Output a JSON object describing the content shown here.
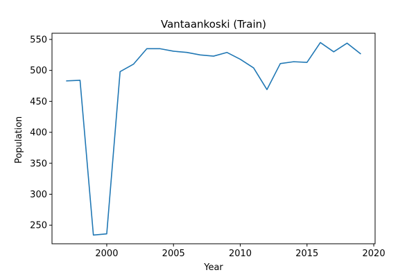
{
  "chart_data": {
    "type": "line",
    "title": "Vantaankoski (Train)",
    "xlabel": "Year",
    "ylabel": "Population",
    "xlim": [
      1995.9,
      2020.1
    ],
    "ylim": [
      220,
      560
    ],
    "xticks": [
      2000,
      2005,
      2010,
      2015,
      2020
    ],
    "yticks": [
      250,
      300,
      350,
      400,
      450,
      500,
      550
    ],
    "grid": false,
    "series": [
      {
        "color": "#1f77b4",
        "x": [
          1997,
          1998,
          1999,
          2000,
          2001,
          2002,
          2003,
          2004,
          2005,
          2006,
          2007,
          2008,
          2009,
          2010,
          2011,
          2012,
          2013,
          2014,
          2015,
          2016,
          2017,
          2018,
          2019
        ],
        "y": [
          483,
          484,
          234,
          236,
          498,
          510,
          535,
          535,
          531,
          529,
          525,
          523,
          529,
          518,
          504,
          469,
          511,
          514,
          513,
          545,
          530,
          544,
          527
        ]
      }
    ]
  }
}
